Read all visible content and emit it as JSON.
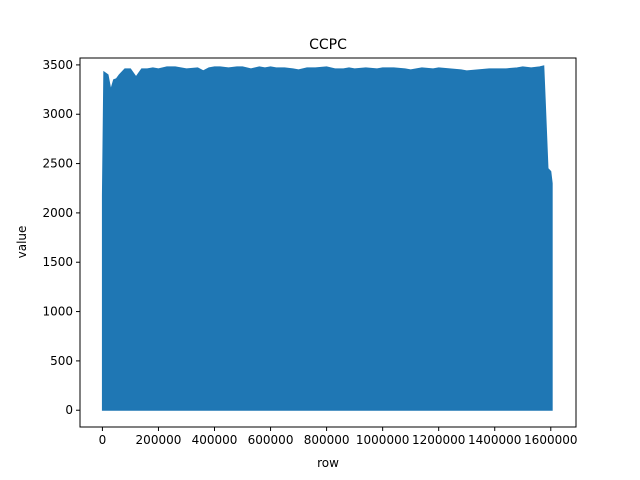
{
  "chart_data": {
    "type": "area",
    "title": "CCPC",
    "xlabel": "row",
    "ylabel": "value",
    "xlim": [
      -80000,
      1690000
    ],
    "ylim": [
      -170,
      3570
    ],
    "x_ticks": [
      0,
      200000,
      400000,
      600000,
      800000,
      1000000,
      1200000,
      1400000,
      1600000
    ],
    "x_tick_labels": [
      "0",
      "200000",
      "400000",
      "600000",
      "800000",
      "1000000",
      "1200000",
      "1400000",
      "1600000"
    ],
    "y_ticks": [
      0,
      500,
      1000,
      1500,
      2000,
      2500,
      3000,
      3500
    ],
    "y_tick_labels": [
      "0",
      "500",
      "1000",
      "1500",
      "2000",
      "2500",
      "3000",
      "3500"
    ],
    "grid": false,
    "series": [
      {
        "color": "#1f77b4",
        "description_note": "",
        "x": [
          0,
          5000,
          10000,
          20000,
          30000,
          40000,
          50000,
          60000,
          80000,
          100000,
          120000,
          130000,
          140000,
          160000,
          180000,
          200000,
          230000,
          260000,
          300000,
          340000,
          360000,
          380000,
          400000,
          420000,
          450000,
          480000,
          500000,
          530000,
          560000,
          580000,
          600000,
          620000,
          650000,
          680000,
          700000,
          730000,
          760000,
          800000,
          830000,
          860000,
          880000,
          900000,
          940000,
          980000,
          1000000,
          1040000,
          1080000,
          1100000,
          1140000,
          1180000,
          1200000,
          1240000,
          1280000,
          1300000,
          1340000,
          1380000,
          1400000,
          1440000,
          1480000,
          1500000,
          1530000,
          1560000,
          1575000,
          1580000,
          1590000,
          1600000,
          1605000
        ],
        "y": [
          2180,
          3430,
          3420,
          3400,
          3250,
          3350,
          3360,
          3400,
          3460,
          3460,
          3380,
          3420,
          3460,
          3460,
          3470,
          3460,
          3480,
          3480,
          3460,
          3470,
          3440,
          3470,
          3480,
          3480,
          3470,
          3480,
          3480,
          3460,
          3480,
          3470,
          3480,
          3470,
          3470,
          3460,
          3450,
          3470,
          3470,
          3480,
          3460,
          3460,
          3470,
          3460,
          3470,
          3460,
          3470,
          3470,
          3460,
          3450,
          3470,
          3460,
          3470,
          3460,
          3450,
          3440,
          3450,
          3460,
          3460,
          3460,
          3470,
          3480,
          3470,
          3480,
          3490,
          3150,
          2450,
          2420,
          2300
        ]
      }
    ]
  }
}
